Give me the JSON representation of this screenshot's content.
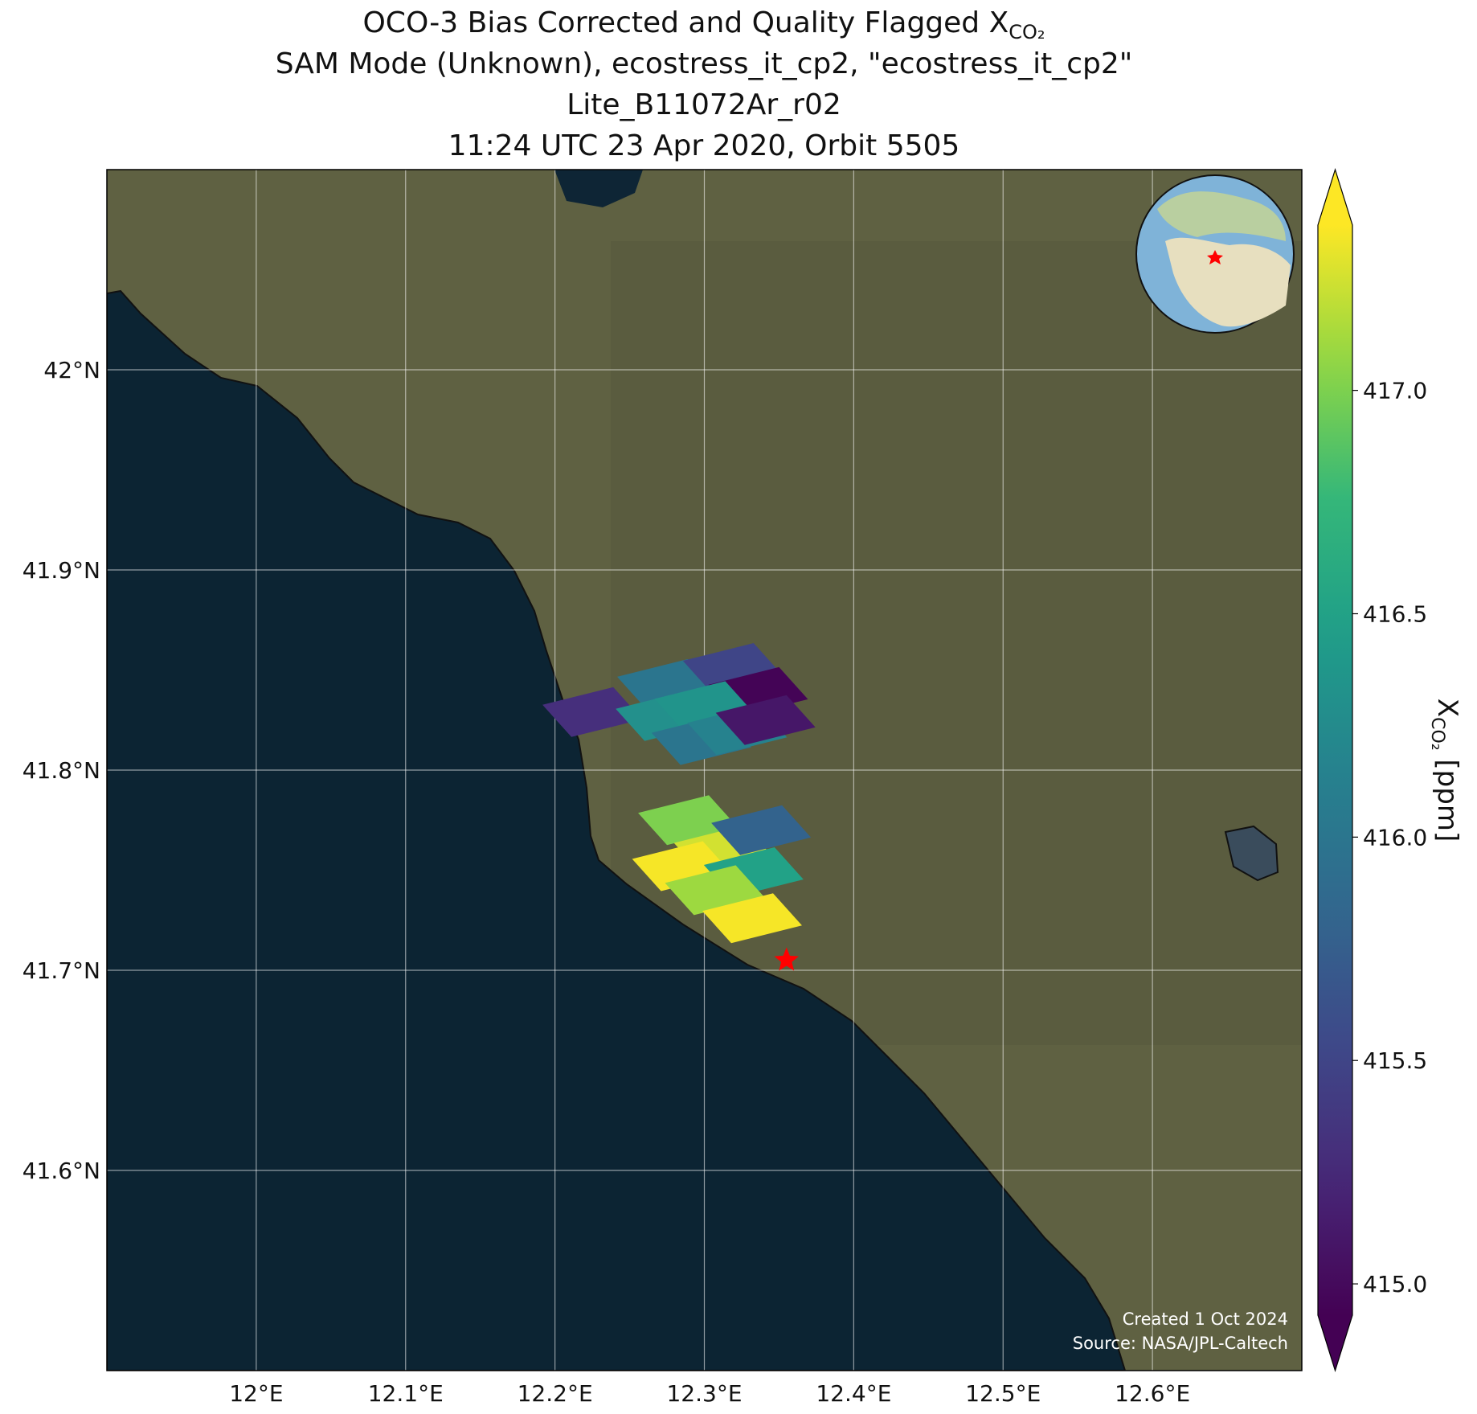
{
  "map": {
    "title_lines": [
      "OCO-3 Bias Corrected and Quality Flagged X",
      "SAM Mode (Unknown), ecostress_it_cp2, \"ecostress_it_cp2\"",
      "Lite_B11072Ar_r02",
      "11:24 UTC 23 Apr 2020, Orbit 5505"
    ],
    "title_subscript": "CO₂",
    "xlim": [
      11.9,
      12.7
    ],
    "ylim": [
      41.5,
      42.1
    ],
    "xticks": [
      {
        "value": 12.0,
        "label": "12°E"
      },
      {
        "value": 12.1,
        "label": "12.1°E"
      },
      {
        "value": 12.2,
        "label": "12.2°E"
      },
      {
        "value": 12.3,
        "label": "12.3°E"
      },
      {
        "value": 12.4,
        "label": "12.4°E"
      },
      {
        "value": 12.5,
        "label": "12.5°E"
      },
      {
        "value": 12.6,
        "label": "12.6°E"
      }
    ],
    "yticks": [
      {
        "value": 41.6,
        "label": "41.6°N"
      },
      {
        "value": 41.7,
        "label": "41.7°N"
      },
      {
        "value": 41.8,
        "label": "41.8°N"
      },
      {
        "value": 41.9,
        "label": "41.9°N"
      },
      {
        "value": 42.0,
        "label": "42°N"
      }
    ],
    "grid": true,
    "colormap": "viridis",
    "colorbar": {
      "label": "X",
      "label_subscript": "CO₂",
      "units": "[ppm]",
      "vlim": [
        414.93,
        417.37
      ],
      "extend": "both",
      "ticks": [
        {
          "value": 415.0,
          "label": "415.0"
        },
        {
          "value": 415.5,
          "label": "415.5"
        },
        {
          "value": 416.0,
          "label": "416.0"
        },
        {
          "value": 416.5,
          "label": "416.5"
        },
        {
          "value": 417.0,
          "label": "417.0"
        }
      ]
    },
    "footprints": {
      "lon": [
        12.225,
        12.275,
        12.319,
        12.336,
        12.274,
        12.3,
        12.298,
        12.322,
        12.341,
        12.289,
        12.313,
        12.338,
        12.285,
        12.333,
        12.307,
        12.332
      ],
      "lat": [
        41.829,
        41.843,
        41.851,
        41.839,
        41.827,
        41.832,
        41.815,
        41.82,
        41.825,
        41.775,
        41.76,
        41.77,
        41.752,
        41.749,
        41.74,
        41.726
      ],
      "xco2": [
        415.3,
        416.0,
        415.5,
        414.95,
        416.3,
        416.35,
        416.0,
        416.15,
        415.1,
        417.0,
        417.25,
        415.8,
        417.35,
        416.5,
        417.1,
        417.35
      ]
    },
    "target": {
      "lon": 12.355,
      "lat": 41.705,
      "color": "#ff0000"
    },
    "footer": [
      "Created 1 Oct 2024",
      "Source: NASA/JPL-Caltech"
    ]
  }
}
